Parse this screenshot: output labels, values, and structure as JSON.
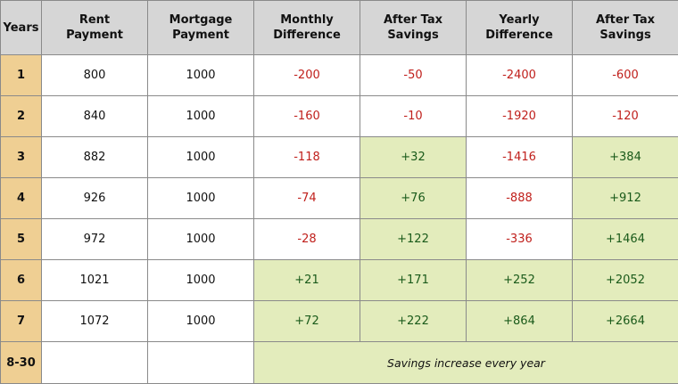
{
  "headers": [
    {
      "line1": "Years",
      "line2": ""
    },
    {
      "line1": "Rent",
      "line2": "Payment"
    },
    {
      "line1": "Mortgage",
      "line2": "Payment"
    },
    {
      "line1": "Monthly",
      "line2": "Difference"
    },
    {
      "line1": "After Tax",
      "line2": "Savings"
    },
    {
      "line1": "Yearly",
      "line2": "Difference"
    },
    {
      "line1": "After Tax",
      "line2": "Savings"
    }
  ],
  "rows": [
    {
      "year": "1",
      "rent": "800",
      "mortgage": "1000",
      "monthly_diff": "-200",
      "monthly_savings": "-50",
      "yearly_diff": "-2400",
      "yearly_savings": "-600"
    },
    {
      "year": "2",
      "rent": "840",
      "mortgage": "1000",
      "monthly_diff": "-160",
      "monthly_savings": "-10",
      "yearly_diff": "-1920",
      "yearly_savings": "-120"
    },
    {
      "year": "3",
      "rent": "882",
      "mortgage": "1000",
      "monthly_diff": "-118",
      "monthly_savings": "+32",
      "yearly_diff": "-1416",
      "yearly_savings": "+384"
    },
    {
      "year": "4",
      "rent": "926",
      "mortgage": "1000",
      "monthly_diff": "-74",
      "monthly_savings": "+76",
      "yearly_diff": "-888",
      "yearly_savings": "+912"
    },
    {
      "year": "5",
      "rent": "972",
      "mortgage": "1000",
      "monthly_diff": "-28",
      "monthly_savings": "+122",
      "yearly_diff": "-336",
      "yearly_savings": "+1464"
    },
    {
      "year": "6",
      "rent": "1021",
      "mortgage": "1000",
      "monthly_diff": "+21",
      "monthly_savings": "+171",
      "yearly_diff": "+252",
      "yearly_savings": "+2052"
    },
    {
      "year": "7",
      "rent": "1072",
      "mortgage": "1000",
      "monthly_diff": "+72",
      "monthly_savings": "+222",
      "yearly_diff": "+864",
      "yearly_savings": "+2664"
    }
  ],
  "final_row": {
    "year": "8-30",
    "note": "Savings increase every year"
  },
  "colors": {
    "header_bg": "#d6d6d6",
    "year_bg": "#efcf93",
    "positive_bg": "#e3ecbc",
    "negative_text": "#c0201c",
    "positive_text": "#1a5a1a"
  }
}
